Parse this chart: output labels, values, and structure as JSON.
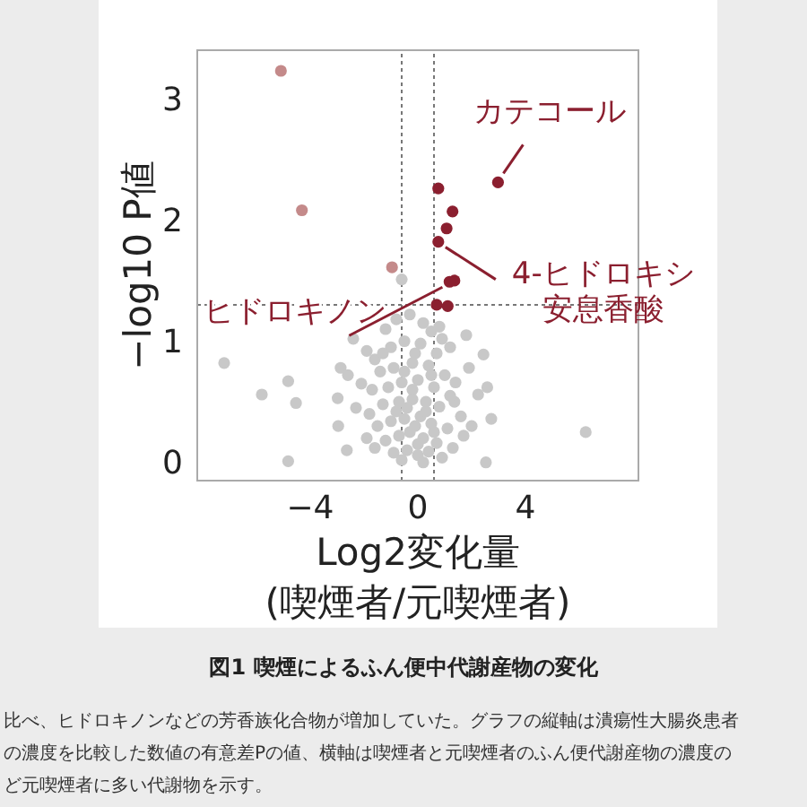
{
  "chart_data": {
    "type": "scatter",
    "title": "図1 喫煙によるふん便中代謝産物の変化",
    "xlabel": "Log2変化量\n(喫煙者/元喫煙者)",
    "ylabel": "−log10 P値",
    "xlim": [
      -8.2,
      8.2
    ],
    "ylim": [
      -0.15,
      3.4
    ],
    "xticks": [
      {
        "value": -4,
        "label": "−4"
      },
      0,
      4
    ],
    "yticks": [
      0,
      1,
      2,
      3
    ],
    "marker": "circle",
    "grid": false,
    "ref_lines": [
      {
        "axis": "x",
        "value": -0.6,
        "color": "#777777",
        "line_style": "dotted"
      },
      {
        "axis": "x",
        "value": 0.6,
        "color": "#777777",
        "line_style": "dotted"
      },
      {
        "axis": "y",
        "value": 1.3,
        "color": "#777777",
        "line_style": "dotted"
      }
    ],
    "series": [
      {
        "color": "#8b1f2f",
        "x": [
          0.76,
          1.29,
          1.07,
          0.76,
          2.98,
          1.36,
          1.18,
          0.7,
          1.11
        ],
        "values": [
          2.26,
          2.07,
          1.93,
          1.82,
          2.31,
          1.5,
          1.49,
          1.3,
          1.29
        ]
      },
      {
        "color": "#c48a8a",
        "x": [
          -5.09,
          -4.31,
          -0.96
        ],
        "values": [
          3.23,
          2.08,
          1.61
        ]
      },
      {
        "color": "#c8c8c8",
        "x": [
          -7.2,
          -4.82,
          -5.8,
          -4.53,
          -4.82,
          6.24,
          2.53,
          2.73,
          2.58,
          2.24,
          2.44,
          1.8,
          -0.6,
          1.36,
          -2.87,
          -2.98,
          -2.64,
          -2.4,
          -2.96,
          -1.9,
          -1.6,
          -1.2,
          -0.8,
          -0.3,
          0.2,
          0.5,
          0.9,
          1.2,
          -1.0,
          -0.5,
          0.1,
          0.7,
          -1.4,
          -0.9,
          -0.2,
          0.4,
          1.0,
          -2.1,
          -1.7,
          -1.1,
          -0.6,
          0.0,
          0.6,
          1.4,
          -2.3,
          -1.8,
          -1.3,
          -0.7,
          -0.2,
          0.3,
          0.8,
          1.6,
          -1.5,
          -1.0,
          -0.5,
          0.1,
          0.5,
          1.1,
          -1.9,
          -1.2,
          -0.7,
          -0.3,
          0.2,
          0.7,
          1.3,
          -0.9,
          -0.4,
          0.0,
          0.4,
          0.9,
          -0.6,
          0.2,
          -1.6,
          1.7,
          -0.1,
          0.3,
          -0.4,
          -0.8,
          0.0,
          0.6,
          -0.2,
          0.5,
          -0.5,
          -1.3,
          1.2,
          -2.6,
          2.0,
          1.9,
          -0.1,
          0.8
        ],
        "values": [
          0.82,
          0.67,
          0.56,
          0.49,
          0.01,
          0.25,
          0.0,
          0.36,
          0.62,
          0.56,
          0.89,
          1.05,
          1.51,
          0.5,
          0.78,
          0.53,
          0.1,
          1.02,
          0.3,
          0.92,
          0.85,
          1.1,
          1.18,
          1.22,
          1.15,
          1.08,
          1.02,
          0.95,
          0.95,
          1.0,
          0.98,
          0.9,
          0.75,
          0.78,
          0.82,
          0.8,
          0.72,
          0.65,
          0.6,
          0.62,
          0.66,
          0.68,
          0.62,
          0.66,
          0.45,
          0.4,
          0.48,
          0.5,
          0.52,
          0.5,
          0.46,
          0.38,
          0.3,
          0.34,
          0.36,
          0.38,
          0.32,
          0.28,
          0.2,
          0.18,
          0.22,
          0.25,
          0.2,
          0.16,
          0.12,
          0.08,
          0.1,
          0.06,
          0.09,
          0.04,
          0.02,
          0.0,
          0.12,
          0.22,
          0.3,
          0.42,
          0.45,
          0.42,
          0.15,
          0.25,
          0.6,
          0.72,
          0.75,
          0.9,
          0.55,
          0.72,
          0.3,
          0.78,
          0.9,
          1.12
        ]
      }
    ],
    "annotations": [
      {
        "text": "カテコール",
        "x": 2.98,
        "y": 2.31
      },
      {
        "text": "4-ヒドロキシ安息香酸",
        "x": 0.76,
        "y": 1.82
      },
      {
        "text": "ヒドロキノン",
        "x": 1.18,
        "y": 1.49
      },
      "比べ、ヒドロキノンなどの芳香族化合物が増加していた。グラフの縦軸は潰瘍性大腸炎患者",
      "の濃度を比較した数値の有意差Pの値、横軸は喫煙者と元喫煙者のふん便代謝産物の濃度の",
      "ど元喫煙者に多い代謝物を示す。"
    ]
  }
}
